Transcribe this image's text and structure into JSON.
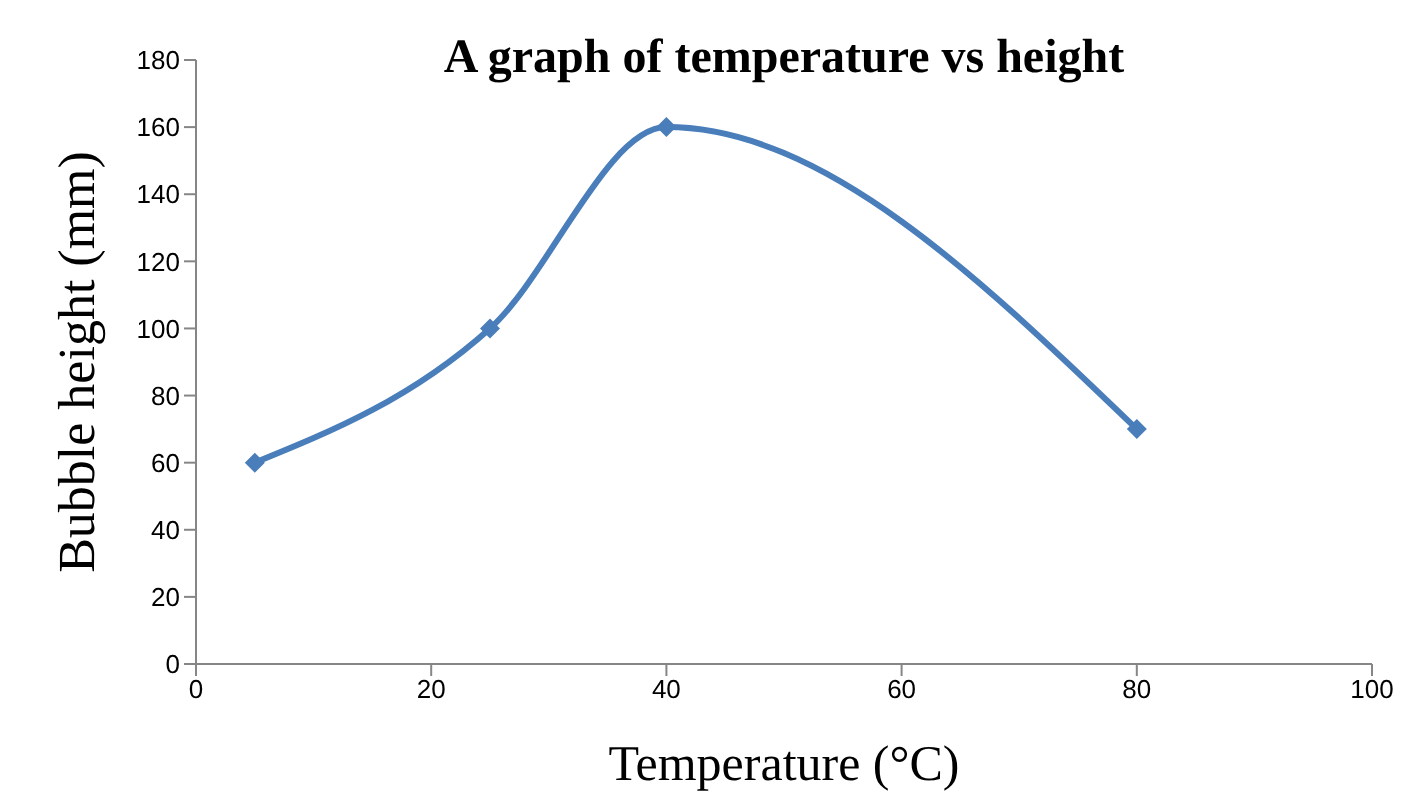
{
  "chart_data": {
    "type": "line",
    "title": "A graph of temperature vs height",
    "xlabel": "Temperature (°C)",
    "ylabel": "Bubble height (mm)",
    "x": [
      5,
      25,
      40,
      80
    ],
    "series": [
      {
        "color": "#4a7ebb",
        "values": [
          60,
          100,
          160,
          70
        ]
      }
    ],
    "xlim": [
      0,
      100
    ],
    "xticks": [
      0,
      20,
      40,
      60,
      80,
      100
    ],
    "ylim": [
      0,
      180
    ],
    "yticks": [
      0,
      20,
      40,
      60,
      80,
      100,
      120,
      140,
      160,
      180
    ],
    "grid": false,
    "legend": false,
    "marker": "diamond",
    "line_style": "solid"
  }
}
